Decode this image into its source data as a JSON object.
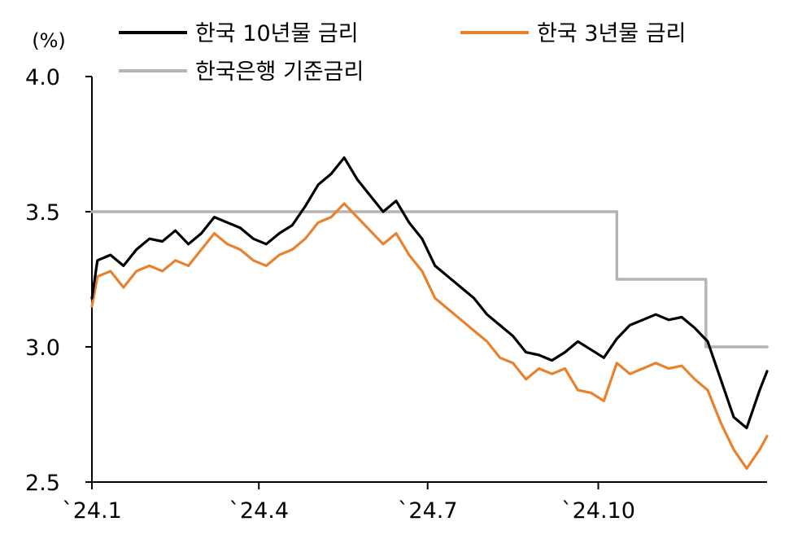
{
  "chart_data": {
    "type": "line",
    "y_unit": "(%)",
    "ylim": [
      2.5,
      4.0
    ],
    "yticks": [
      "4.0",
      "3.5",
      "3.0",
      "2.5"
    ],
    "xlim": [
      "2024-01-02",
      "2024-12-31"
    ],
    "xticks": [
      {
        "date": "2024-01-02",
        "label": "`24.1"
      },
      {
        "date": "2024-04-01",
        "label": "`24.4"
      },
      {
        "date": "2024-07-01",
        "label": "`24.7"
      },
      {
        "date": "2024-10-01",
        "label": "`24.10"
      }
    ],
    "grid": false,
    "legend_position": "top",
    "series": [
      {
        "name": "한국 10년물 금리",
        "color": "#000000",
        "points": [
          [
            "2024-01-02",
            3.18
          ],
          [
            "2024-01-05",
            3.32
          ],
          [
            "2024-01-12",
            3.34
          ],
          [
            "2024-01-19",
            3.3
          ],
          [
            "2024-01-26",
            3.36
          ],
          [
            "2024-02-02",
            3.4
          ],
          [
            "2024-02-09",
            3.39
          ],
          [
            "2024-02-16",
            3.43
          ],
          [
            "2024-02-23",
            3.38
          ],
          [
            "2024-03-01",
            3.42
          ],
          [
            "2024-03-08",
            3.48
          ],
          [
            "2024-03-15",
            3.46
          ],
          [
            "2024-03-22",
            3.44
          ],
          [
            "2024-03-29",
            3.4
          ],
          [
            "2024-04-05",
            3.38
          ],
          [
            "2024-04-12",
            3.42
          ],
          [
            "2024-04-19",
            3.45
          ],
          [
            "2024-04-26",
            3.52
          ],
          [
            "2024-05-03",
            3.6
          ],
          [
            "2024-05-10",
            3.64
          ],
          [
            "2024-05-17",
            3.7
          ],
          [
            "2024-05-24",
            3.62
          ],
          [
            "2024-05-31",
            3.56
          ],
          [
            "2024-06-07",
            3.5
          ],
          [
            "2024-06-14",
            3.54
          ],
          [
            "2024-06-21",
            3.46
          ],
          [
            "2024-06-28",
            3.4
          ],
          [
            "2024-07-05",
            3.3
          ],
          [
            "2024-07-12",
            3.26
          ],
          [
            "2024-07-19",
            3.22
          ],
          [
            "2024-07-26",
            3.18
          ],
          [
            "2024-08-02",
            3.12
          ],
          [
            "2024-08-09",
            3.08
          ],
          [
            "2024-08-16",
            3.04
          ],
          [
            "2024-08-23",
            2.98
          ],
          [
            "2024-08-30",
            2.97
          ],
          [
            "2024-09-06",
            2.95
          ],
          [
            "2024-09-13",
            2.98
          ],
          [
            "2024-09-20",
            3.02
          ],
          [
            "2024-09-27",
            2.99
          ],
          [
            "2024-10-04",
            2.96
          ],
          [
            "2024-10-11",
            3.03
          ],
          [
            "2024-10-18",
            3.08
          ],
          [
            "2024-10-25",
            3.1
          ],
          [
            "2024-11-01",
            3.12
          ],
          [
            "2024-11-08",
            3.1
          ],
          [
            "2024-11-15",
            3.11
          ],
          [
            "2024-11-22",
            3.07
          ],
          [
            "2024-11-29",
            3.02
          ],
          [
            "2024-12-06",
            2.88
          ],
          [
            "2024-12-13",
            2.74
          ],
          [
            "2024-12-20",
            2.7
          ],
          [
            "2024-12-27",
            2.84
          ],
          [
            "2024-12-31",
            2.91
          ]
        ]
      },
      {
        "name": "한국 3년물 금리",
        "color": "#E8822E",
        "points": [
          [
            "2024-01-02",
            3.15
          ],
          [
            "2024-01-05",
            3.26
          ],
          [
            "2024-01-12",
            3.28
          ],
          [
            "2024-01-19",
            3.22
          ],
          [
            "2024-01-26",
            3.28
          ],
          [
            "2024-02-02",
            3.3
          ],
          [
            "2024-02-09",
            3.28
          ],
          [
            "2024-02-16",
            3.32
          ],
          [
            "2024-02-23",
            3.3
          ],
          [
            "2024-03-01",
            3.36
          ],
          [
            "2024-03-08",
            3.42
          ],
          [
            "2024-03-15",
            3.38
          ],
          [
            "2024-03-22",
            3.36
          ],
          [
            "2024-03-29",
            3.32
          ],
          [
            "2024-04-05",
            3.3
          ],
          [
            "2024-04-12",
            3.34
          ],
          [
            "2024-04-19",
            3.36
          ],
          [
            "2024-04-26",
            3.4
          ],
          [
            "2024-05-03",
            3.46
          ],
          [
            "2024-05-10",
            3.48
          ],
          [
            "2024-05-17",
            3.53
          ],
          [
            "2024-05-24",
            3.48
          ],
          [
            "2024-05-31",
            3.43
          ],
          [
            "2024-06-07",
            3.38
          ],
          [
            "2024-06-14",
            3.42
          ],
          [
            "2024-06-21",
            3.34
          ],
          [
            "2024-06-28",
            3.28
          ],
          [
            "2024-07-05",
            3.18
          ],
          [
            "2024-07-12",
            3.14
          ],
          [
            "2024-07-19",
            3.1
          ],
          [
            "2024-07-26",
            3.06
          ],
          [
            "2024-08-02",
            3.02
          ],
          [
            "2024-08-09",
            2.96
          ],
          [
            "2024-08-16",
            2.94
          ],
          [
            "2024-08-23",
            2.88
          ],
          [
            "2024-08-30",
            2.92
          ],
          [
            "2024-09-06",
            2.9
          ],
          [
            "2024-09-13",
            2.92
          ],
          [
            "2024-09-20",
            2.84
          ],
          [
            "2024-09-27",
            2.83
          ],
          [
            "2024-10-04",
            2.8
          ],
          [
            "2024-10-11",
            2.94
          ],
          [
            "2024-10-18",
            2.9
          ],
          [
            "2024-10-25",
            2.92
          ],
          [
            "2024-11-01",
            2.94
          ],
          [
            "2024-11-08",
            2.92
          ],
          [
            "2024-11-15",
            2.93
          ],
          [
            "2024-11-22",
            2.88
          ],
          [
            "2024-11-29",
            2.84
          ],
          [
            "2024-12-06",
            2.72
          ],
          [
            "2024-12-13",
            2.62
          ],
          [
            "2024-12-20",
            2.55
          ],
          [
            "2024-12-27",
            2.62
          ],
          [
            "2024-12-31",
            2.67
          ]
        ]
      },
      {
        "name": "한국은행 기준금리",
        "color": "#B4B4B4",
        "points": [
          [
            "2024-01-02",
            3.5
          ],
          [
            "2024-10-11",
            3.5
          ],
          [
            "2024-10-11",
            3.25
          ],
          [
            "2024-11-28",
            3.25
          ],
          [
            "2024-11-28",
            3.0
          ],
          [
            "2024-12-31",
            3.0
          ]
        ]
      }
    ]
  }
}
